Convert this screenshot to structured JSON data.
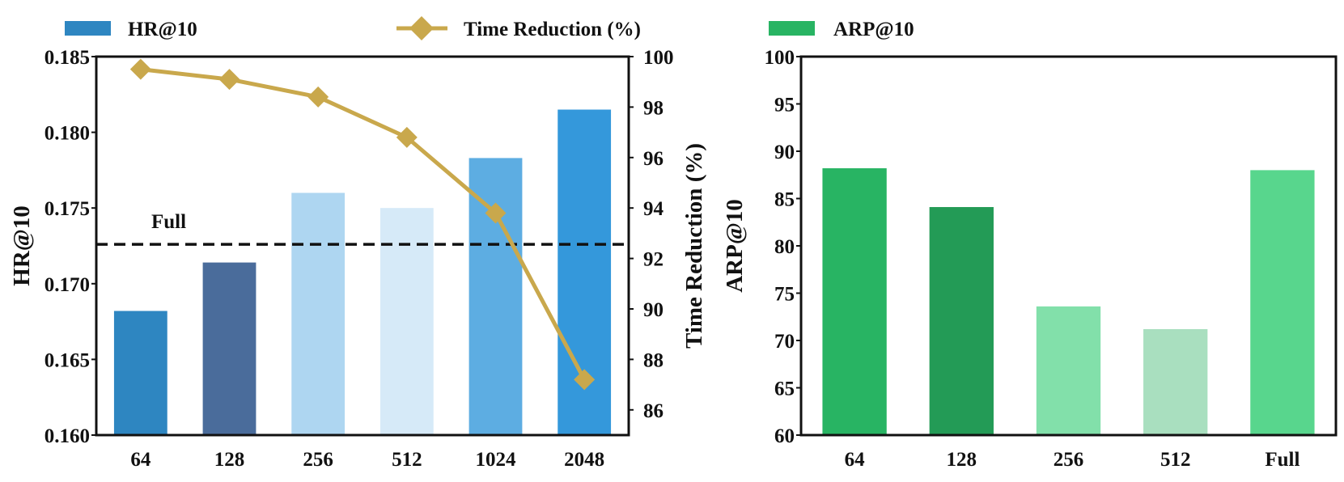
{
  "chart_data": [
    {
      "type": "bar",
      "title": "",
      "categories": [
        "64",
        "128",
        "256",
        "512",
        "1024",
        "2048"
      ],
      "xlabel": "",
      "ylabel": "HR@10",
      "ylim": [
        0.16,
        0.185
      ],
      "yticks": [
        "0.160",
        "0.165",
        "0.170",
        "0.175",
        "0.180",
        "0.185"
      ],
      "series": [
        {
          "name": "HR@10",
          "values": [
            0.1682,
            0.1714,
            0.176,
            0.175,
            0.1783,
            0.1815
          ],
          "colors": [
            "#2e86c1",
            "#4a6c9b",
            "#aed6f1",
            "#d6eaf8",
            "#5dade2",
            "#3498db"
          ]
        }
      ],
      "secondary_axis": {
        "type": "line",
        "name": "Time Reduction (%)",
        "ylabel": "Time Reduction (%)",
        "ylim": [
          85,
          100
        ],
        "yticks": [
          "86",
          "88",
          "90",
          "92",
          "94",
          "96",
          "98",
          "100"
        ],
        "values": [
          99.5,
          99.1,
          98.4,
          96.8,
          93.8,
          87.2
        ],
        "color": "#c9a84c"
      },
      "reference_line": {
        "label": "Full",
        "value": 0.1726
      },
      "legend": [
        {
          "label": "HR@10",
          "marker": "bar",
          "color": "#2e86c1"
        },
        {
          "label": "Time Reduction (%)",
          "marker": "line-diamond",
          "color": "#c9a84c"
        }
      ]
    },
    {
      "type": "bar",
      "title": "",
      "categories": [
        "64",
        "128",
        "256",
        "512",
        "Full"
      ],
      "xlabel": "",
      "ylabel": "ARP@10",
      "ylim": [
        60,
        100
      ],
      "yticks": [
        "60",
        "65",
        "70",
        "75",
        "80",
        "85",
        "90",
        "95",
        "100"
      ],
      "series": [
        {
          "name": "ARP@10",
          "values": [
            88.2,
            84.1,
            73.6,
            71.2,
            88.0
          ],
          "colors": [
            "#28b463",
            "#239b56",
            "#82e0aa",
            "#a9dfbf",
            "#58d68d"
          ]
        }
      ],
      "legend": [
        {
          "label": "ARP@10",
          "marker": "bar",
          "color": "#28b463"
        }
      ]
    }
  ]
}
